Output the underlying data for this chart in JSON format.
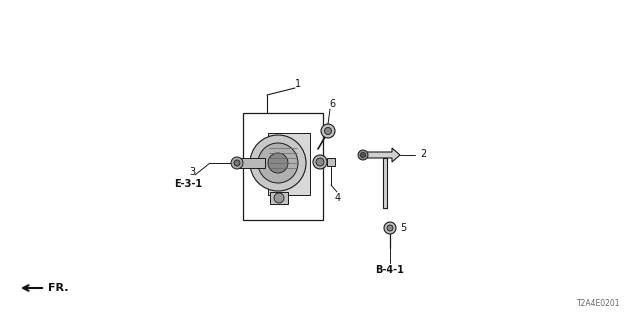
{
  "bg_color": "#ffffff",
  "line_color": "#1a1a1a",
  "fig_width": 6.4,
  "fig_height": 3.2,
  "dpi": 100,
  "diagram_code": "T2A4E0201",
  "fr_label": "FR.",
  "gray_fill": "#aaaaaa",
  "dark_gray": "#555555",
  "light_gray": "#cccccc",
  "label_fs": 7,
  "bold_label_fs": 7,
  "note_fs": 6
}
